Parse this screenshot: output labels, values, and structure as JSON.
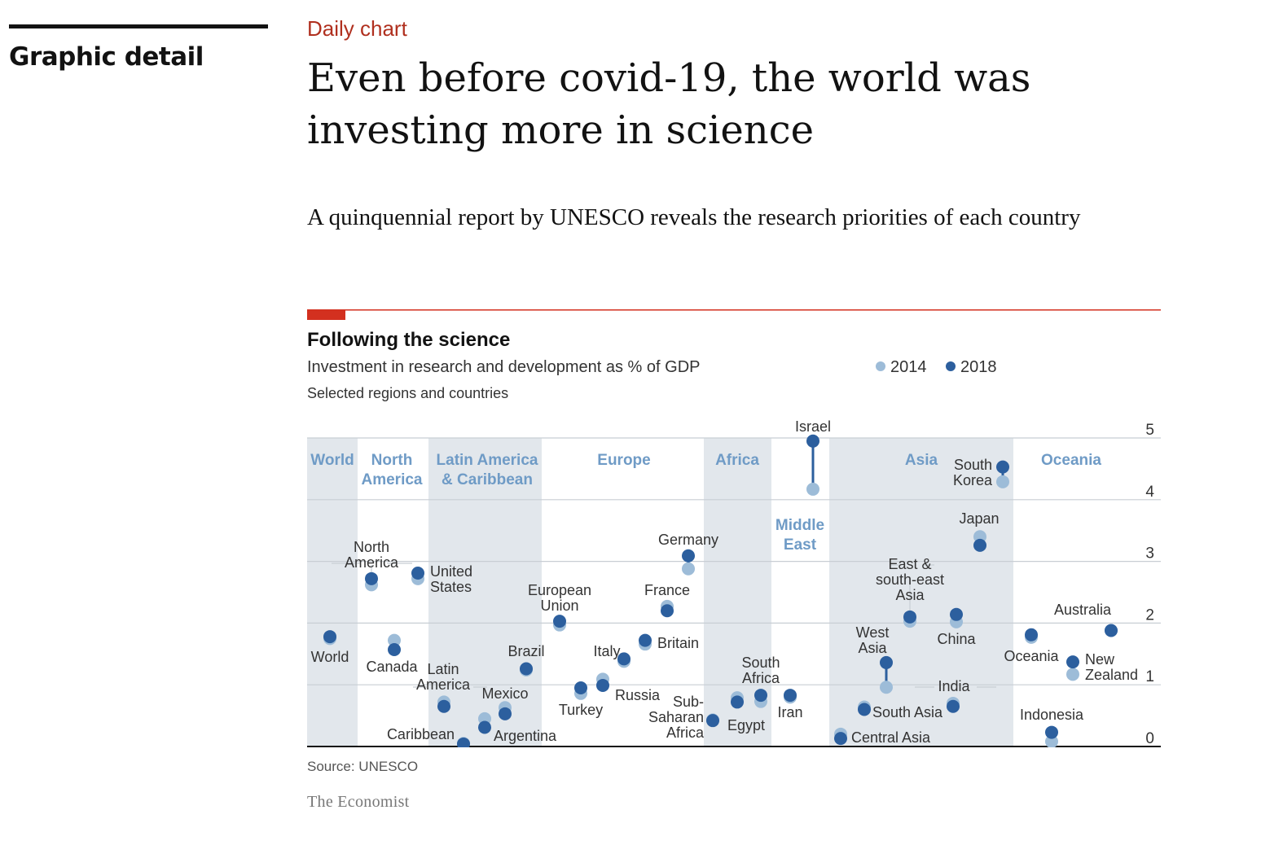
{
  "page": {
    "section": "Graphic detail",
    "kicker": "Daily chart",
    "headline": "Even before covid-19, the world was investing more in science",
    "standfirst": "A quinquennial report by UNESCO reveals the research priorities of each country",
    "source": "Source: UNESCO",
    "brand": "The Economist"
  },
  "chart_data": {
    "type": "scatter",
    "title": "Following the science",
    "subtitle": "Investment in research and development as % of GDP",
    "note": "Selected regions and countries",
    "ylim": [
      0,
      5
    ],
    "yticks": [
      "0",
      "1",
      "2",
      "3",
      "4",
      "5"
    ],
    "grid": true,
    "legend_position": "top-right",
    "colors": {
      "2014": "#9dbcd8",
      "2018": "#2c5f9e",
      "band": "#e2e7ec",
      "accent": "#d3301f",
      "region_label": "#6f9bc6"
    },
    "series": [
      {
        "name": "2014"
      },
      {
        "name": "2018"
      }
    ],
    "regions": [
      {
        "name": "World",
        "band": true
      },
      {
        "name": "North\nAmerica",
        "band": false
      },
      {
        "name": "Latin America\n& Caribbean",
        "band": true
      },
      {
        "name": "Europe",
        "band": false
      },
      {
        "name": "Africa",
        "band": true
      },
      {
        "name": "Middle\nEast",
        "band": false
      },
      {
        "name": "Asia",
        "band": true
      },
      {
        "name": "Oceania",
        "band": false
      }
    ],
    "points": [
      {
        "label": "World",
        "v2014": 1.75,
        "v2018": 1.78
      },
      {
        "label": "North\nAmerica",
        "v2014": 2.62,
        "v2018": 2.72
      },
      {
        "label": "United\nStates",
        "v2014": 2.72,
        "v2018": 2.81
      },
      {
        "label": "Canada",
        "v2014": 1.72,
        "v2018": 1.57
      },
      {
        "label": "Latin\nAmerica",
        "v2014": 0.72,
        "v2018": 0.65
      },
      {
        "label": "Caribbean",
        "v2014": 0.05,
        "v2018": 0.04
      },
      {
        "label": "Brazil",
        "v2014": 1.24,
        "v2018": 1.26
      },
      {
        "label": "Argentina",
        "v2014": 0.45,
        "v2018": 0.31
      },
      {
        "label": "Mexico",
        "v2014": 0.63,
        "v2018": 0.53
      },
      {
        "label": "European\nUnion",
        "v2014": 1.97,
        "v2018": 2.03
      },
      {
        "label": "Turkey",
        "v2014": 0.86,
        "v2018": 0.95
      },
      {
        "label": "Russia",
        "v2014": 1.09,
        "v2018": 0.99
      },
      {
        "label": "Italy",
        "v2014": 1.38,
        "v2018": 1.42
      },
      {
        "label": "Britain",
        "v2014": 1.66,
        "v2018": 1.72
      },
      {
        "label": "France",
        "v2014": 2.27,
        "v2018": 2.2
      },
      {
        "label": "Germany",
        "v2014": 2.88,
        "v2018": 3.09
      },
      {
        "label": "Sub-\nSaharan\nAfrica",
        "v2014": 0.43,
        "v2018": 0.42
      },
      {
        "label": "South\nAfrica",
        "v2014": 0.73,
        "v2018": 0.83
      },
      {
        "label": "Egypt",
        "v2014": 0.79,
        "v2018": 0.72
      },
      {
        "label": "Iran",
        "v2014": 0.8,
        "v2018": 0.83
      },
      {
        "label": "Israel",
        "v2014": 4.17,
        "v2018": 4.95
      },
      {
        "label": "Central Asia",
        "v2014": 0.2,
        "v2018": 0.13
      },
      {
        "label": "South Asia",
        "v2014": 0.64,
        "v2018": 0.6
      },
      {
        "label": "West\nAsia",
        "v2014": 0.96,
        "v2018": 1.36
      },
      {
        "label": "East &\nsouth-east\nAsia",
        "v2014": 2.03,
        "v2018": 2.1
      },
      {
        "label": "China",
        "v2014": 2.02,
        "v2018": 2.14
      },
      {
        "label": "India",
        "v2014": 0.7,
        "v2018": 0.65
      },
      {
        "label": "Japan",
        "v2014": 3.4,
        "v2018": 3.26
      },
      {
        "label": "South\nKorea",
        "v2014": 4.29,
        "v2018": 4.53
      },
      {
        "label": "Oceania",
        "v2014": 1.77,
        "v2018": 1.81
      },
      {
        "label": "Australia",
        "v2014": 1.88,
        "v2018": 1.88
      },
      {
        "label": "New\nZealand",
        "v2014": 1.17,
        "v2018": 1.37
      },
      {
        "label": "Indonesia",
        "v2014": 0.08,
        "v2018": 0.23
      }
    ]
  }
}
